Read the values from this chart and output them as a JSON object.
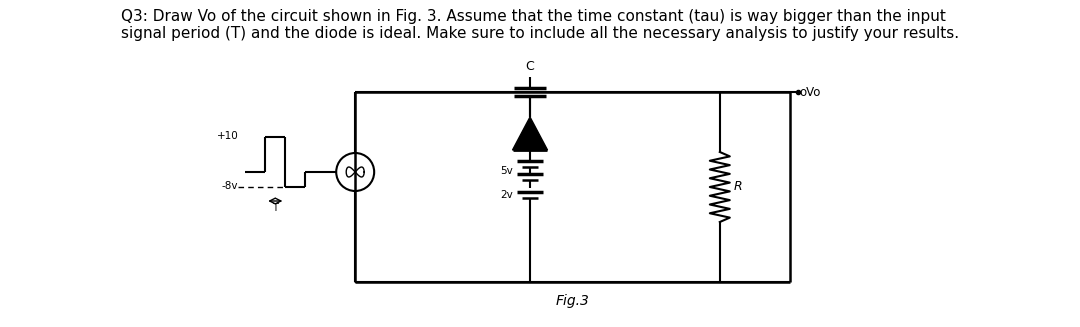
{
  "title_text": "Q3: Draw Vo of the circuit shown in Fig. 3. Assume that the time constant (tau) is way bigger than the input\nsignal period (T) and the diode is ideal. Make sure to include all the necessary analysis to justify your results.",
  "fig_label": "Fig.3",
  "background_color": "#ffffff",
  "title_fontsize": 11.0,
  "wf_plus10": "+10",
  "wf_minus8": "-8v",
  "wf_T": "T",
  "label_5v": "5v",
  "label_2v": "2v",
  "label_C": "C",
  "label_R": "R",
  "label_Vo": "oVo"
}
